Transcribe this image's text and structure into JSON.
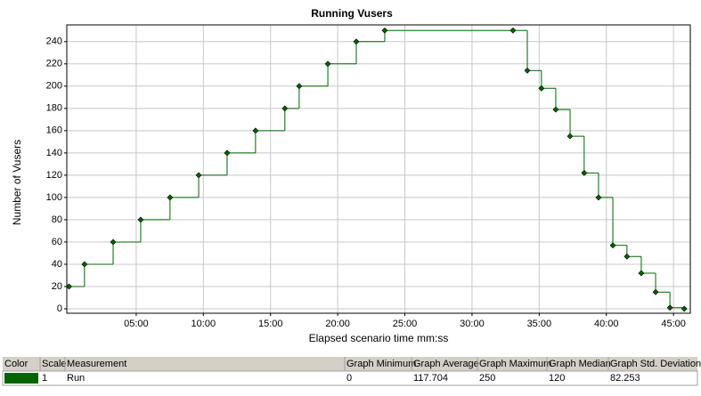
{
  "chart_data": {
    "type": "step",
    "title": "Running Vusers",
    "x_label": "Elapsed scenario time mm:ss",
    "y_label": "Number of Vusers",
    "x": [
      0,
      69,
      197,
      320,
      451,
      579,
      706,
      833,
      964,
      1028,
      1156,
      1283,
      1410,
      1983,
      2047,
      2110,
      2174,
      2238,
      2301,
      2365,
      2429,
      2492,
      2556,
      2620,
      2684,
      2748
    ],
    "series": [
      {
        "name": "Run",
        "color": "#006400",
        "values": [
          20,
          40,
          60,
          80,
          100,
          120,
          140,
          160,
          180,
          200,
          220,
          240,
          250,
          250,
          214,
          198,
          179,
          155,
          122,
          100,
          57,
          47,
          32,
          15,
          1,
          0
        ]
      }
    ],
    "xlim": [
      -10,
      2775
    ],
    "ylim": [
      -4,
      255
    ],
    "xticks": [
      {
        "value": 300,
        "label": "05:00"
      },
      {
        "value": 600,
        "label": "10:00"
      },
      {
        "value": 900,
        "label": "15:00"
      },
      {
        "value": 1200,
        "label": "20:00"
      },
      {
        "value": 1500,
        "label": "25:00"
      },
      {
        "value": 1800,
        "label": "30:00"
      },
      {
        "value": 2100,
        "label": "35:00"
      },
      {
        "value": 2400,
        "label": "40:00"
      },
      {
        "value": 2700,
        "label": "45:00"
      }
    ],
    "yticks": [
      0,
      20,
      40,
      60,
      80,
      100,
      120,
      140,
      160,
      180,
      200,
      220,
      240
    ],
    "grid": true
  },
  "table": {
    "headers": [
      "Color",
      "Scale",
      "Measurement",
      "Graph Minimum",
      "Graph Average",
      "Graph Maximum",
      "Graph Median",
      "Graph Std. Deviation"
    ],
    "rows": [
      [
        null,
        1,
        "Run",
        0,
        117.704,
        250,
        120,
        82.253
      ]
    ]
  }
}
